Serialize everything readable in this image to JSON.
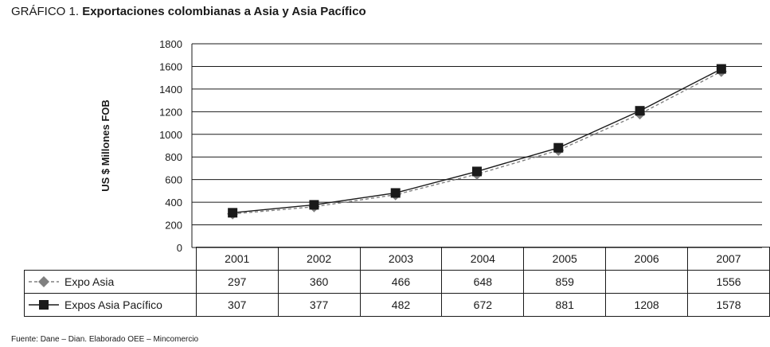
{
  "title": {
    "lead": "GRÁFICO 1.",
    "text": "Exportaciones colombianas a Asia y Asia Pacífico"
  },
  "source": "Fuente: Dane – Dian. Elaborado OEE – Mincomercio",
  "chart_data": {
    "type": "line",
    "ylabel": "US $ Millones FOB",
    "ylim": [
      0,
      1800
    ],
    "yticks": [
      0,
      200,
      400,
      600,
      800,
      1000,
      1200,
      1400,
      1600,
      1800
    ],
    "categories": [
      "2001",
      "2002",
      "2003",
      "2004",
      "2005",
      "2006",
      "2007"
    ],
    "grid": true,
    "legend": "data-table",
    "series": [
      {
        "name": "Expo Asia",
        "values": [
          297,
          360,
          466,
          648,
          859,
          1180,
          1556
        ],
        "table_values": [
          "297",
          "360",
          "466",
          "648",
          "859",
          "",
          "1556"
        ],
        "color": "#808080",
        "marker": "diamond",
        "dash": true
      },
      {
        "name": "Expos Asia Pacífico",
        "values": [
          307,
          377,
          482,
          672,
          881,
          1208,
          1578
        ],
        "table_values": [
          "307",
          "377",
          "482",
          "672",
          "881",
          "1208",
          "1578"
        ],
        "color": "#1a1a1a",
        "marker": "square",
        "dash": false
      }
    ]
  }
}
